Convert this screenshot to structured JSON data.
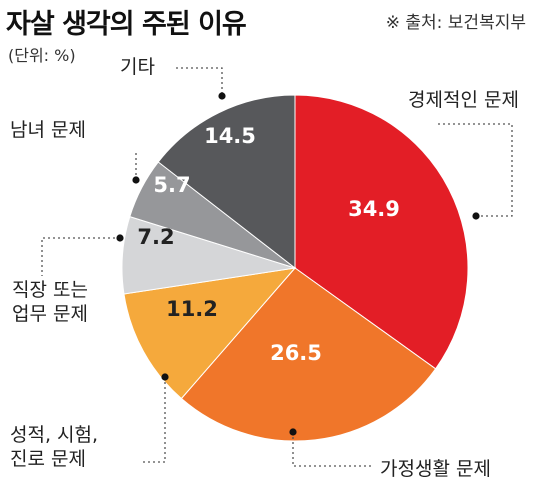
{
  "header": {
    "title": "자살 생각의 주된 이유",
    "source": "※ 출처: 보건복지부",
    "unit": "(단위: %)"
  },
  "chart_data": {
    "type": "pie",
    "title": "자살 생각의 주된 이유",
    "unit": "%",
    "slices": [
      {
        "label": "경제적인 문제",
        "value": 34.9,
        "value_text": "34.9",
        "color": "#e31e26",
        "text_color": "#ffffff"
      },
      {
        "label": "가정생활 문제",
        "value": 26.5,
        "value_text": "26.5",
        "color": "#f0762a",
        "text_color": "#ffffff"
      },
      {
        "label": "성적, 시험, 진로 문제",
        "lines": [
          "성적, 시험,",
          "진로 문제"
        ],
        "value": 11.2,
        "value_text": "11.2",
        "color": "#f5a93c",
        "text_color": "#222222"
      },
      {
        "label": "직장 또는 업무 문제",
        "lines": [
          "직장 또는",
          "업무 문제"
        ],
        "value": 7.2,
        "value_text": "7.2",
        "color": "#d5d6d8",
        "text_color": "#222222"
      },
      {
        "label": "남녀 문제",
        "value": 5.7,
        "value_text": "5.7",
        "color": "#96979a",
        "text_color": "#ffffff"
      },
      {
        "label": "기타",
        "value": 14.5,
        "value_text": "14.5",
        "color": "#57585b",
        "text_color": "#ffffff"
      }
    ]
  }
}
